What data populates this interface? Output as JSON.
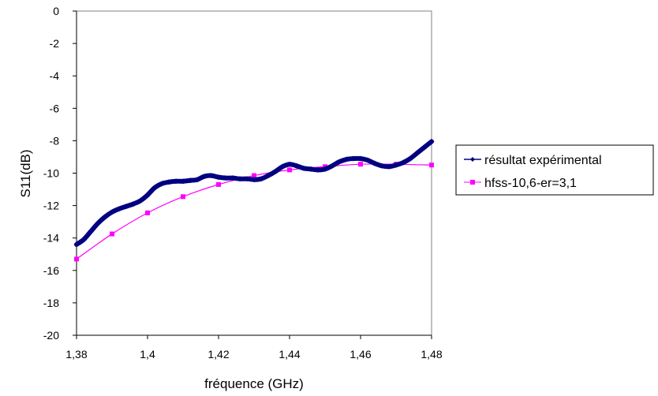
{
  "chart_data": {
    "type": "line",
    "xlabel": "fréquence (GHz)",
    "ylabel": "S11(dB)",
    "xlim": [
      1.38,
      1.48
    ],
    "ylim": [
      -20,
      0
    ],
    "x_ticks": [
      "1,38",
      "1,4",
      "1,42",
      "1,44",
      "1,46",
      "1,48"
    ],
    "x_tick_values": [
      1.38,
      1.4,
      1.42,
      1.44,
      1.46,
      1.48
    ],
    "y_ticks": [
      "0",
      "-2",
      "-4",
      "-6",
      "-8",
      "-10",
      "-12",
      "-14",
      "-16",
      "-18",
      "-20"
    ],
    "y_tick_values": [
      0,
      -2,
      -4,
      -6,
      -8,
      -10,
      -12,
      -14,
      -16,
      -18,
      -20
    ],
    "grid": false,
    "legend_position": "right",
    "series": [
      {
        "name": "résultat expérimental",
        "color": "#000080",
        "marker": "diamond",
        "x": [
          1.38,
          1.382,
          1.384,
          1.386,
          1.388,
          1.39,
          1.392,
          1.394,
          1.396,
          1.398,
          1.4,
          1.402,
          1.404,
          1.406,
          1.408,
          1.41,
          1.412,
          1.414,
          1.416,
          1.418,
          1.42,
          1.422,
          1.424,
          1.426,
          1.428,
          1.43,
          1.432,
          1.434,
          1.436,
          1.438,
          1.44,
          1.442,
          1.444,
          1.446,
          1.448,
          1.45,
          1.452,
          1.454,
          1.456,
          1.458,
          1.46,
          1.462,
          1.464,
          1.466,
          1.468,
          1.47,
          1.472,
          1.474,
          1.476,
          1.478,
          1.48
        ],
        "y": [
          -14.4,
          -14.1,
          -13.6,
          -13.1,
          -12.7,
          -12.4,
          -12.2,
          -12.05,
          -11.9,
          -11.7,
          -11.35,
          -10.9,
          -10.65,
          -10.55,
          -10.5,
          -10.5,
          -10.45,
          -10.4,
          -10.2,
          -10.15,
          -10.25,
          -10.3,
          -10.3,
          -10.35,
          -10.35,
          -10.4,
          -10.35,
          -10.15,
          -9.9,
          -9.6,
          -9.45,
          -9.55,
          -9.7,
          -9.75,
          -9.8,
          -9.75,
          -9.55,
          -9.3,
          -9.15,
          -9.1,
          -9.1,
          -9.2,
          -9.4,
          -9.55,
          -9.6,
          -9.5,
          -9.35,
          -9.1,
          -8.75,
          -8.4,
          -8.05
        ]
      },
      {
        "name": "hfss-10,6-er=3,1",
        "color": "#FF00FF",
        "marker": "square",
        "x": [
          1.38,
          1.39,
          1.4,
          1.41,
          1.42,
          1.43,
          1.44,
          1.45,
          1.46,
          1.47,
          1.48
        ],
        "y": [
          -15.3,
          -13.75,
          -12.45,
          -11.45,
          -10.7,
          -10.15,
          -9.8,
          -9.6,
          -9.45,
          -9.45,
          -9.5
        ]
      }
    ]
  }
}
